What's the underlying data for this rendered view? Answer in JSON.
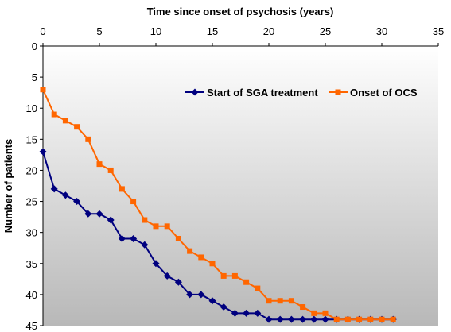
{
  "chart_data": {
    "type": "line",
    "title": "",
    "xlabel": "Time since onset of psychosis (years)",
    "ylabel": "Number of patients",
    "xlim": [
      0,
      35
    ],
    "ylim": [
      0,
      45
    ],
    "x_ticks": [
      "0",
      "5",
      "10",
      "15",
      "20",
      "25",
      "30",
      "35"
    ],
    "y_ticks": [
      "0",
      "5",
      "10",
      "15",
      "20",
      "25",
      "30",
      "35",
      "40",
      "45"
    ],
    "x_axis_position": "top",
    "y_axis_inverted": true,
    "grid": false,
    "legend_position": "top-right",
    "series": [
      {
        "name": "Start of SGA treatment",
        "color": "#00007f",
        "marker": "diamond",
        "x": [
          0,
          1,
          2,
          3,
          4,
          5,
          6,
          7,
          8,
          9,
          10,
          11,
          12,
          13,
          14,
          15,
          16,
          17,
          18,
          19,
          20,
          21,
          22,
          23,
          24,
          25,
          26,
          27,
          28,
          29,
          30,
          31
        ],
        "values": [
          17,
          23,
          24,
          25,
          27,
          27,
          28,
          31,
          31,
          32,
          35,
          37,
          38,
          40,
          40,
          41,
          42,
          43,
          43,
          43,
          44,
          44,
          44,
          44,
          44,
          44,
          44,
          44,
          44,
          44,
          44,
          44
        ]
      },
      {
        "name": "Onset of OCS",
        "color": "#ff6600",
        "marker": "square",
        "x": [
          0,
          1,
          2,
          3,
          4,
          5,
          6,
          7,
          8,
          9,
          10,
          11,
          12,
          13,
          14,
          15,
          16,
          17,
          18,
          19,
          20,
          21,
          22,
          23,
          24,
          25,
          26,
          27,
          28,
          29,
          30,
          31
        ],
        "values": [
          7,
          11,
          12,
          13,
          15,
          19,
          20,
          23,
          25,
          28,
          29,
          29,
          31,
          33,
          34,
          35,
          37,
          37,
          38,
          39,
          41,
          41,
          41,
          42,
          43,
          43,
          44,
          44,
          44,
          44,
          44,
          44
        ]
      }
    ]
  }
}
